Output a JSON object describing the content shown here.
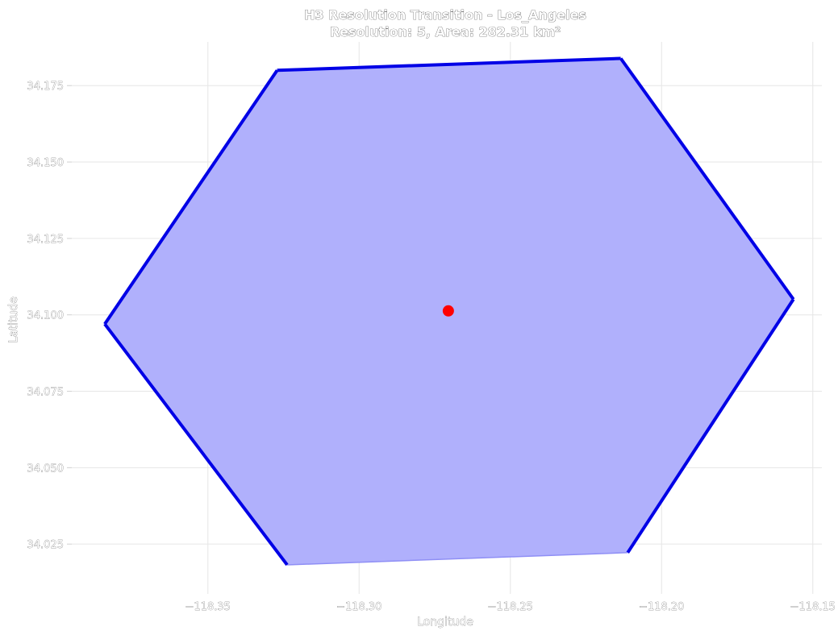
{
  "chart_data": {
    "type": "scatter",
    "title": "H3 Resolution Transition - Los_Angeles",
    "subtitle": "Resolution: 5, Area: 282.31 km²",
    "xlabel": "Longitude",
    "ylabel": "Latitude",
    "xlim": [
      -118.395,
      -118.147
    ],
    "ylim": [
      34.0087,
      34.1893
    ],
    "x_ticks": [
      -118.35,
      -118.3,
      -118.25,
      -118.2,
      -118.15
    ],
    "x_tick_labels": [
      "−118.35",
      "−118.30",
      "−118.25",
      "−118.20",
      "−118.15"
    ],
    "y_ticks": [
      34.025,
      34.05,
      34.075,
      34.1,
      34.125,
      34.15,
      34.175
    ],
    "y_tick_labels": [
      "34.025",
      "34.050",
      "34.075",
      "34.100",
      "34.125",
      "34.150",
      "34.175"
    ],
    "grid": true,
    "hexagon": {
      "vertices": [
        {
          "lon": -118.3271,
          "lat": 34.18
        },
        {
          "lon": -118.2135,
          "lat": 34.1839
        },
        {
          "lon": -118.1564,
          "lat": 34.1051
        },
        {
          "lon": -118.2112,
          "lat": 34.0222
        },
        {
          "lon": -118.3238,
          "lat": 34.0182
        },
        {
          "lon": -118.3841,
          "lat": 34.097
        }
      ],
      "fill_color": "#b0b0fc",
      "edge_color": "#0000e6"
    },
    "center_point": {
      "lon": -118.2705,
      "lat": 34.1013,
      "color": "#ff0000"
    }
  }
}
